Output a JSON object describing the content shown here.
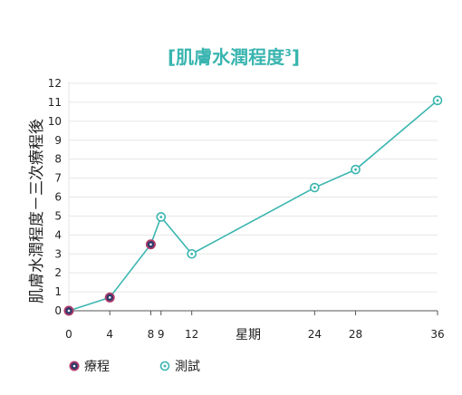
{
  "chart_data": {
    "type": "line",
    "title_main": "[肌膚水潤程度",
    "title_sup": "3",
    "title_close": "]",
    "xlabel": "星期",
    "ylabel": "肌膚水潤程度－三次療程後",
    "xlim": [
      0,
      36
    ],
    "ylim": [
      0,
      12
    ],
    "x_ticks": [
      {
        "value": 0,
        "label": "0"
      },
      {
        "value": 4,
        "label": "4"
      },
      {
        "value": 8,
        "label": "8"
      },
      {
        "value": 9,
        "label": "9"
      },
      {
        "value": 12,
        "label": "12"
      },
      {
        "value": 24,
        "label": "24"
      },
      {
        "value": 28,
        "label": "28"
      },
      {
        "value": 36,
        "label": "36"
      }
    ],
    "y_ticks": [
      0,
      1,
      2,
      3,
      4,
      5,
      6,
      7,
      8,
      9,
      10,
      11,
      12
    ],
    "grid": true,
    "series": [
      {
        "name": "測試",
        "x": [
          0,
          4,
          8,
          9,
          12,
          24,
          28,
          36
        ],
        "y": [
          0,
          0.7,
          3.5,
          4.95,
          3,
          6.5,
          7.45,
          11.1
        ]
      }
    ],
    "treatment_points": [
      {
        "x": 0,
        "y": 0
      },
      {
        "x": 4,
        "y": 0.7
      },
      {
        "x": 8,
        "y": 3.5
      }
    ],
    "legend": [
      {
        "label": "療程",
        "marker": "treatment"
      },
      {
        "label": "測試",
        "marker": "test"
      }
    ]
  },
  "colors": {
    "accent": "#3ab5b0",
    "treatment_stroke": "#b03a6a",
    "treatment_fill": "#2e3a6a",
    "grid": "#e6e6e6",
    "axis": "#555555",
    "text": "#222222"
  }
}
